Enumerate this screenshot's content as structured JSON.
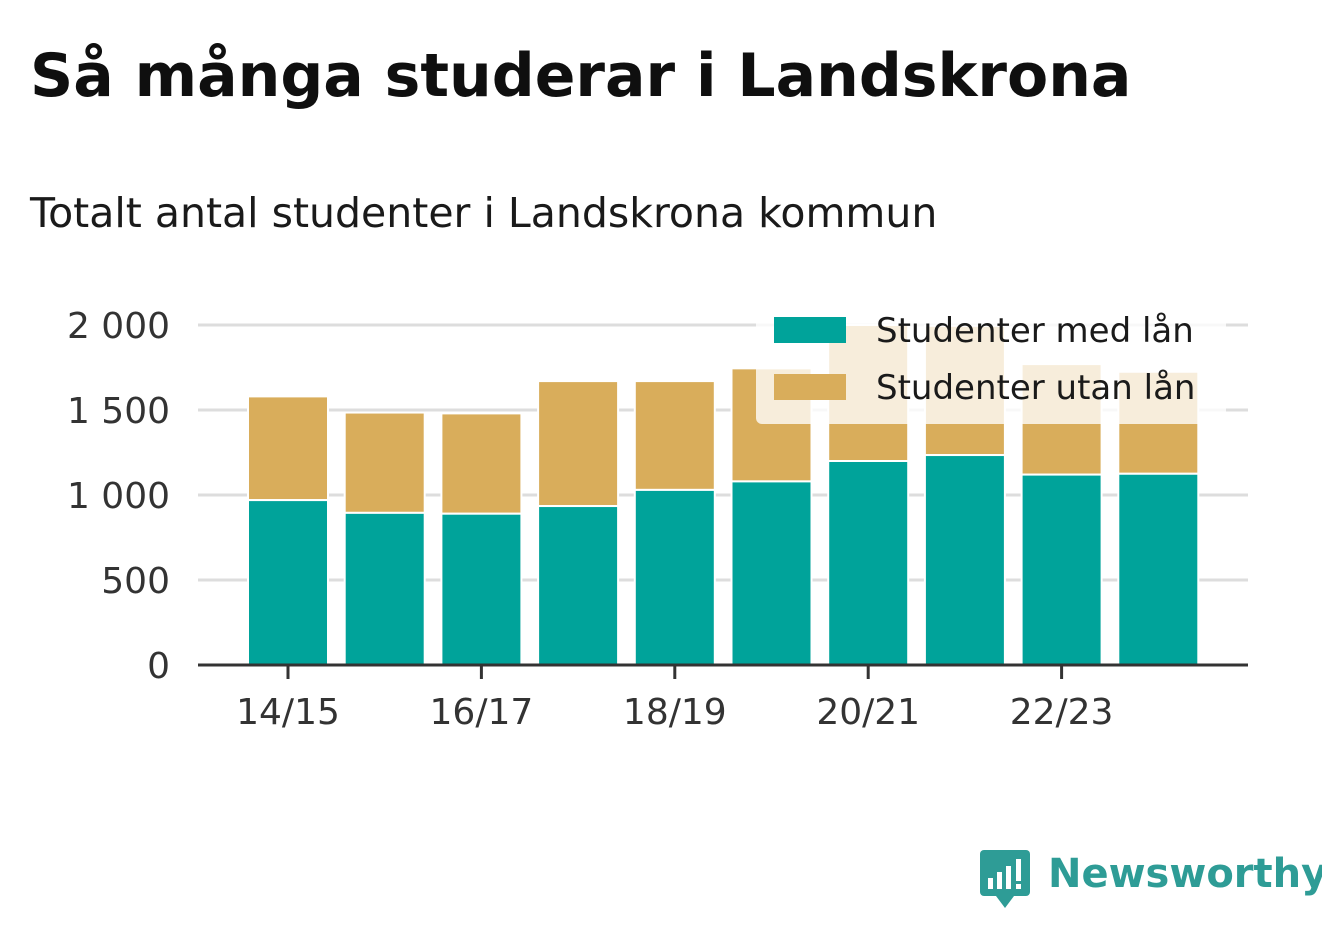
{
  "title": "Så många studerar i Landskrona",
  "subtitle": "Totalt antal studenter i Landskrona kommun",
  "brand": {
    "name": "Newsworthy",
    "color": "#2e9c96",
    "icon": "newsworthy-logo-icon"
  },
  "colors": {
    "med_lan": "#00a39a",
    "utan_lan": "#d9ad5b",
    "grid": "#dddddd",
    "axis": "#333333"
  },
  "chart_data": {
    "type": "bar",
    "stacked": true,
    "categories": [
      "14/15",
      "15/16",
      "16/17",
      "17/18",
      "18/19",
      "19/20",
      "20/21",
      "21/22",
      "22/23",
      "23/24"
    ],
    "x_tick_labels": [
      "14/15",
      "",
      "16/17",
      "",
      "18/19",
      "",
      "20/21",
      "",
      "22/23",
      ""
    ],
    "series": [
      {
        "name": "Studenter med lån",
        "values": [
          970,
          895,
          890,
          935,
          1030,
          1080,
          1200,
          1235,
          1120,
          1125
        ]
      },
      {
        "name": "Studenter utan lån",
        "values": [
          610,
          590,
          590,
          735,
          640,
          665,
          800,
          760,
          650,
          600
        ]
      }
    ],
    "ylim": [
      0,
      2000
    ],
    "yticks": [
      0,
      500,
      1000,
      1500,
      2000
    ],
    "ytick_labels": [
      "0",
      "500",
      "1 000",
      "1 500",
      "2 000"
    ],
    "grid": true,
    "legend_position": "top-right",
    "xlabel": "",
    "ylabel": ""
  }
}
